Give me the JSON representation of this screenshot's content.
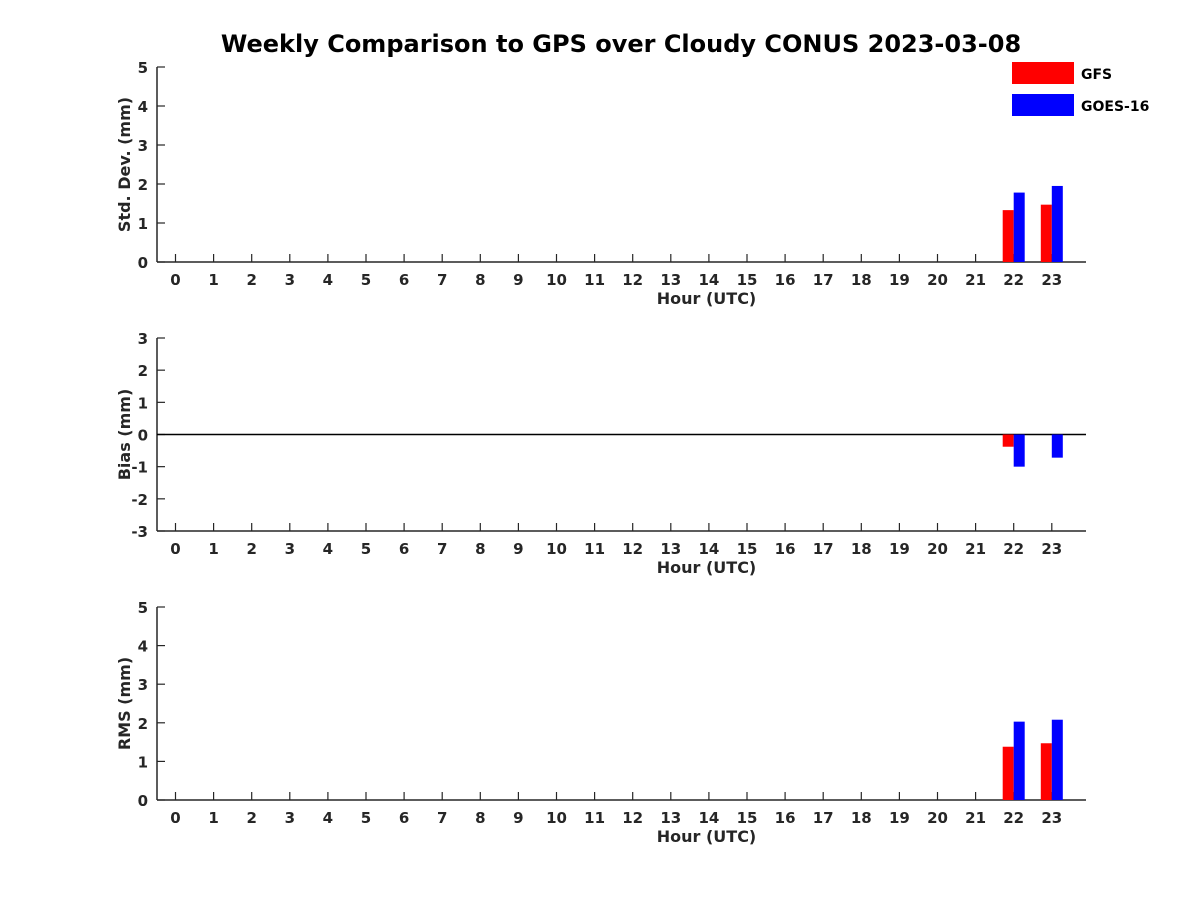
{
  "title": "Weekly Comparison to GPS over Cloudy CONUS 2023-03-08",
  "legend": {
    "placement": "top-right",
    "items": [
      {
        "label": "GFS",
        "color": "#ff0000"
      },
      {
        "label": "GOES-16",
        "color": "#0000ff"
      }
    ]
  },
  "chart_data": [
    {
      "type": "bar",
      "xlabel": "Hour (UTC)",
      "ylabel": "Std. Dev. (mm)",
      "ylim": [
        0,
        5
      ],
      "yticks": [
        0,
        1,
        2,
        3,
        4,
        5
      ],
      "categories": [
        "0",
        "1",
        "2",
        "3",
        "4",
        "5",
        "6",
        "7",
        "8",
        "9",
        "10",
        "11",
        "12",
        "13",
        "14",
        "15",
        "16",
        "17",
        "18",
        "19",
        "20",
        "21",
        "22",
        "23"
      ],
      "series": [
        {
          "name": "GFS",
          "color": "#ff0000",
          "values": [
            null,
            null,
            null,
            null,
            null,
            null,
            null,
            null,
            null,
            null,
            null,
            null,
            null,
            null,
            null,
            null,
            null,
            null,
            null,
            null,
            null,
            null,
            1.33,
            1.47
          ]
        },
        {
          "name": "GOES-16",
          "color": "#0000ff",
          "values": [
            null,
            null,
            null,
            null,
            null,
            null,
            null,
            null,
            null,
            null,
            null,
            null,
            null,
            null,
            null,
            null,
            null,
            null,
            null,
            null,
            null,
            null,
            1.78,
            1.95
          ]
        }
      ],
      "grid": false
    },
    {
      "type": "bar",
      "xlabel": "Hour (UTC)",
      "ylabel": "Bias (mm)",
      "ylim": [
        -3,
        3
      ],
      "yticks": [
        -3,
        -2,
        -1,
        0,
        1,
        2,
        3
      ],
      "zero_line": true,
      "categories": [
        "0",
        "1",
        "2",
        "3",
        "4",
        "5",
        "6",
        "7",
        "8",
        "9",
        "10",
        "11",
        "12",
        "13",
        "14",
        "15",
        "16",
        "17",
        "18",
        "19",
        "20",
        "21",
        "22",
        "23"
      ],
      "series": [
        {
          "name": "GFS",
          "color": "#ff0000",
          "values": [
            null,
            null,
            null,
            null,
            null,
            null,
            null,
            null,
            null,
            null,
            null,
            null,
            null,
            null,
            null,
            null,
            null,
            null,
            null,
            null,
            null,
            null,
            -0.38,
            0.0
          ]
        },
        {
          "name": "GOES-16",
          "color": "#0000ff",
          "values": [
            null,
            null,
            null,
            null,
            null,
            null,
            null,
            null,
            null,
            null,
            null,
            null,
            null,
            null,
            null,
            null,
            null,
            null,
            null,
            null,
            null,
            null,
            -1.0,
            -0.72
          ]
        }
      ],
      "grid": false
    },
    {
      "type": "bar",
      "xlabel": "Hour (UTC)",
      "ylabel": "RMS (mm)",
      "ylim": [
        0,
        5
      ],
      "yticks": [
        0,
        1,
        2,
        3,
        4,
        5
      ],
      "categories": [
        "0",
        "1",
        "2",
        "3",
        "4",
        "5",
        "6",
        "7",
        "8",
        "9",
        "10",
        "11",
        "12",
        "13",
        "14",
        "15",
        "16",
        "17",
        "18",
        "19",
        "20",
        "21",
        "22",
        "23"
      ],
      "series": [
        {
          "name": "GFS",
          "color": "#ff0000",
          "values": [
            null,
            null,
            null,
            null,
            null,
            null,
            null,
            null,
            null,
            null,
            null,
            null,
            null,
            null,
            null,
            null,
            null,
            null,
            null,
            null,
            null,
            null,
            1.38,
            1.47
          ]
        },
        {
          "name": "GOES-16",
          "color": "#0000ff",
          "values": [
            null,
            null,
            null,
            null,
            null,
            null,
            null,
            null,
            null,
            null,
            null,
            null,
            null,
            null,
            null,
            null,
            null,
            null,
            null,
            null,
            null,
            null,
            2.03,
            2.08
          ]
        }
      ],
      "grid": false
    }
  ]
}
